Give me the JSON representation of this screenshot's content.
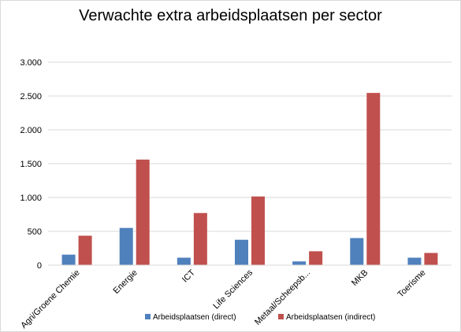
{
  "chart_data": {
    "type": "bar",
    "title": "Verwachte extra arbeidsplaatsen per sector",
    "xlabel": "",
    "ylabel": "",
    "ylim": [
      0,
      3000
    ],
    "yticks": [
      0,
      500,
      1000,
      1500,
      2000,
      2500,
      3000
    ],
    "ytick_labels": [
      "0",
      "500",
      "1.000",
      "1.500",
      "2.000",
      "2.500",
      "3.000"
    ],
    "grid": true,
    "legend_position": "bottom",
    "categories": [
      "Agri/Groene Chemie",
      "Energie",
      "ICT",
      "Life Sciences",
      "Metaal/Scheepsb...",
      "MKB",
      "Toerisme"
    ],
    "series": [
      {
        "name": "Arbeidsplaatsen (direct)",
        "color": "#4f81bd",
        "values": [
          155,
          550,
          110,
          375,
          55,
          400,
          110
        ]
      },
      {
        "name": "Arbeidsplaatsen (indirect)",
        "color": "#c0504d",
        "values": [
          435,
          1560,
          770,
          1015,
          205,
          2545,
          180
        ]
      }
    ]
  }
}
